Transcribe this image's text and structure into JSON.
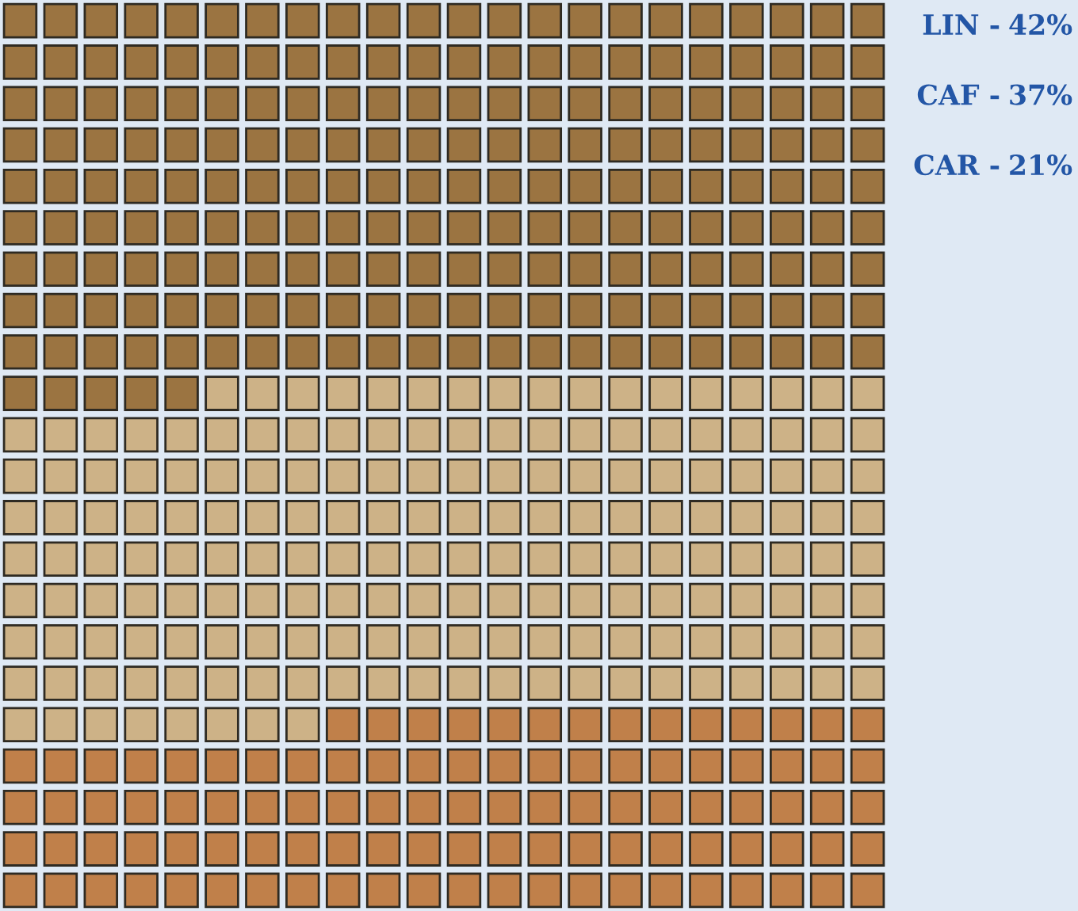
{
  "chart_data": {
    "type": "other",
    "categories": [
      "LIN -",
      "CAF -",
      "CAR -"
    ],
    "values": [
      42,
      37,
      21
    ],
    "value_labels": [
      "42%",
      "37%",
      "21%"
    ],
    "colors": [
      "#9b7441",
      "#cdb287",
      "#c0804a"
    ]
  }
}
